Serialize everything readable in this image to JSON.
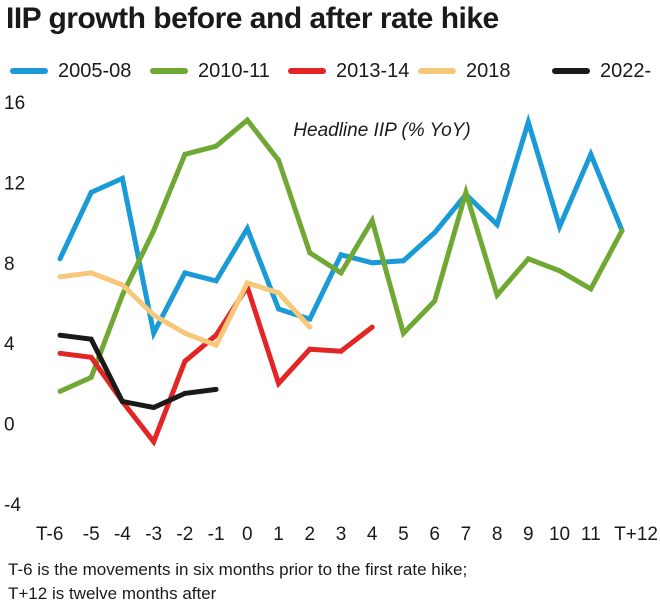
{
  "chart_data": {
    "type": "line",
    "title": "IIP growth before and after rate hike",
    "annotation": "Headline IIP (% YoY)",
    "xlabel": "",
    "ylabel": "",
    "categories": [
      "T-6",
      "-5",
      "-4",
      "-3",
      "-2",
      "-1",
      "0",
      "1",
      "2",
      "3",
      "4",
      "5",
      "6",
      "7",
      "8",
      "9",
      "10",
      "11",
      "T+12"
    ],
    "ylim": [
      -4,
      16
    ],
    "yticks": [
      -4,
      0,
      4,
      8,
      12,
      16
    ],
    "ytick_labels": [
      "-4",
      "0",
      "4",
      "8",
      "12",
      "16"
    ],
    "grid": false,
    "legend_position": "top",
    "series": [
      {
        "name": "2005-08",
        "color": "#1a9ad6",
        "values": [
          8.2,
          11.5,
          12.2,
          4.5,
          7.5,
          7.1,
          9.7,
          5.7,
          5.2,
          8.4,
          8.0,
          8.1,
          9.5,
          11.4,
          9.9,
          15.0,
          9.8,
          13.4,
          9.6
        ]
      },
      {
        "name": "2010-11",
        "color": "#6fa832",
        "values": [
          1.6,
          2.3,
          6.4,
          9.6,
          13.4,
          13.8,
          15.1,
          13.1,
          8.5,
          7.5,
          10.1,
          4.5,
          6.1,
          11.5,
          6.4,
          8.2,
          7.6,
          6.7,
          9.6
        ]
      },
      {
        "name": "2013-14",
        "color": "#e32526",
        "values": [
          3.5,
          3.3,
          1.1,
          -0.9,
          3.1,
          4.4,
          6.8,
          2.0,
          3.7,
          3.6,
          4.8,
          null,
          null,
          null,
          null,
          null,
          null,
          null,
          null
        ]
      },
      {
        "name": "2018",
        "color": "#f8c87a",
        "values": [
          7.3,
          7.5,
          6.9,
          5.4,
          4.5,
          3.9,
          7.0,
          6.5,
          4.8,
          null,
          null,
          null,
          null,
          null,
          null,
          null,
          null,
          null,
          null
        ]
      },
      {
        "name": "2022-",
        "color": "#1a1a1a",
        "values": [
          4.4,
          4.2,
          1.1,
          0.8,
          1.5,
          1.7,
          null,
          null,
          null,
          null,
          null,
          null,
          null,
          null,
          null,
          null,
          null,
          null,
          null
        ]
      }
    ]
  },
  "footnote": {
    "line1": "T-6 is the movements in six months prior to the first rate hike;",
    "line2": "T+12 is twelve months after"
  }
}
